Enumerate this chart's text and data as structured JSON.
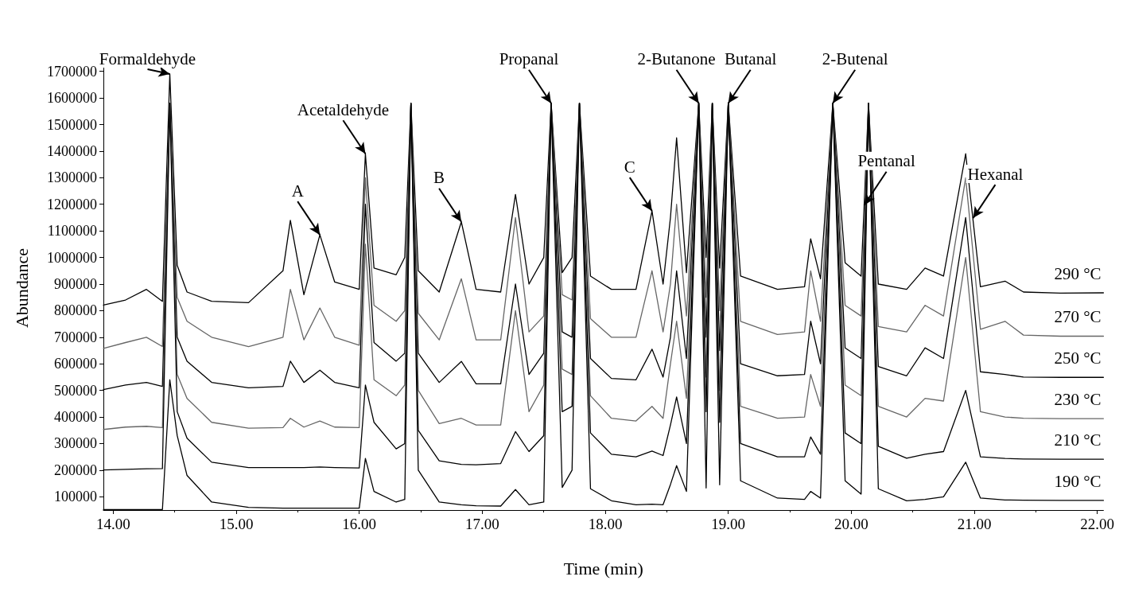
{
  "chart_data": {
    "type": "line",
    "xlabel": "Time (min)",
    "ylabel": "Abundance",
    "xlim": [
      13.92,
      22.05
    ],
    "ylim": [
      50000,
      1720000
    ],
    "xticks": [
      {
        "value": 14,
        "label": "14.00"
      },
      {
        "value": 15,
        "label": "15.00"
      },
      {
        "value": 16,
        "label": "16.00"
      },
      {
        "value": 17,
        "label": "17.00"
      },
      {
        "value": 18,
        "label": "18.00"
      },
      {
        "value": 19,
        "label": "19.00"
      },
      {
        "value": 20,
        "label": "20.00"
      },
      {
        "value": 21,
        "label": "21.00"
      },
      {
        "value": 22,
        "label": "22.00"
      }
    ],
    "yticks": [
      100000,
      200000,
      300000,
      400000,
      500000,
      600000,
      700000,
      800000,
      900000,
      1000000,
      1100000,
      1200000,
      1300000,
      1400000,
      1500000,
      1600000,
      1700000
    ],
    "grid": false,
    "legend": false,
    "marker": "none",
    "line_style": "solid",
    "x": [
      13.92,
      14.1,
      14.27,
      14.4,
      14.46,
      14.52,
      14.6,
      14.8,
      15.1,
      15.38,
      15.44,
      15.55,
      15.68,
      15.8,
      16.0,
      16.05,
      16.12,
      16.3,
      16.37,
      16.42,
      16.48,
      16.65,
      16.83,
      16.95,
      17.15,
      17.27,
      17.38,
      17.5,
      17.56,
      17.65,
      17.73,
      17.79,
      17.88,
      18.05,
      18.25,
      18.38,
      18.47,
      18.53,
      18.58,
      18.66,
      18.76,
      18.82,
      18.87,
      18.93,
      19.0,
      19.1,
      19.4,
      19.62,
      19.67,
      19.75,
      19.85,
      19.95,
      20.08,
      20.14,
      20.22,
      20.45,
      20.6,
      20.75,
      20.93,
      21.05,
      21.25,
      21.4,
      21.7,
      22.05
    ],
    "series": [
      {
        "name": "290 °C",
        "color": "#000000",
        "values": [
          821000,
          840000,
          880000,
          835000,
          1690000,
          970000,
          870000,
          835000,
          830000,
          950000,
          1140000,
          860000,
          1085000,
          908000,
          880000,
          1390000,
          960000,
          935000,
          1000000,
          1580000,
          950000,
          870000,
          1134000,
          880000,
          870000,
          1237000,
          900000,
          1000000,
          1580000,
          943000,
          1000000,
          1580000,
          930000,
          880000,
          880000,
          1175000,
          900000,
          1150000,
          1450000,
          943000,
          1580000,
          1000000,
          1580000,
          960000,
          1580000,
          930000,
          880000,
          890000,
          1070000,
          920000,
          1580000,
          980000,
          930000,
          1580000,
          900000,
          880000,
          960000,
          930000,
          1390000,
          890000,
          911000,
          870000,
          866000,
          867000
        ]
      },
      {
        "name": "270 °C",
        "color": "#666666",
        "values": [
          658000,
          680000,
          700000,
          665000,
          1580000,
          850000,
          760000,
          700000,
          665000,
          700000,
          880000,
          690000,
          810000,
          700000,
          670000,
          1300000,
          820000,
          760000,
          800000,
          1580000,
          790000,
          690000,
          920000,
          690000,
          690000,
          1150000,
          720000,
          780000,
          1580000,
          860000,
          840000,
          1580000,
          770000,
          700000,
          700000,
          950000,
          720000,
          900000,
          1200000,
          780000,
          1580000,
          850000,
          1580000,
          800000,
          1580000,
          760000,
          710000,
          720000,
          950000,
          760000,
          1580000,
          820000,
          780000,
          1580000,
          740000,
          720000,
          820000,
          780000,
          1300000,
          730000,
          760000,
          708000,
          704000,
          704000
        ]
      },
      {
        "name": "250 °C",
        "color": "#000000",
        "values": [
          503000,
          520000,
          530000,
          515000,
          1580000,
          700000,
          610000,
          530000,
          510000,
          515000,
          610000,
          530000,
          576000,
          530000,
          510000,
          1200000,
          680000,
          610000,
          640000,
          1580000,
          640000,
          530000,
          609000,
          525000,
          525000,
          900000,
          560000,
          640000,
          1580000,
          720000,
          700000,
          1580000,
          620000,
          545000,
          540000,
          655000,
          550000,
          700000,
          950000,
          620000,
          1580000,
          700000,
          1580000,
          650000,
          1580000,
          600000,
          555000,
          560000,
          760000,
          600000,
          1580000,
          660000,
          620000,
          1580000,
          590000,
          555000,
          660000,
          620000,
          1150000,
          570000,
          560000,
          550000,
          549000,
          549000
        ]
      },
      {
        "name": "230 °C",
        "color": "#666666",
        "values": [
          353000,
          362000,
          365000,
          360000,
          1580000,
          560000,
          470000,
          380000,
          358000,
          360000,
          395000,
          362000,
          385000,
          362000,
          360000,
          1050000,
          540000,
          480000,
          520000,
          1580000,
          500000,
          375000,
          395000,
          370000,
          370000,
          800000,
          420000,
          520000,
          1580000,
          580000,
          560000,
          1580000,
          480000,
          395000,
          385000,
          440000,
          395000,
          600000,
          760000,
          470000,
          1580000,
          550000,
          1580000,
          500000,
          1580000,
          440000,
          395000,
          400000,
          560000,
          440000,
          1580000,
          520000,
          480000,
          1580000,
          440000,
          400000,
          470000,
          460000,
          1000000,
          420000,
          400000,
          395000,
          394000,
          394000
        ]
      },
      {
        "name": "210 °C",
        "color": "#000000",
        "values": [
          201000,
          203000,
          205000,
          206000,
          1580000,
          420000,
          320000,
          230000,
          210000,
          210000,
          210000,
          210000,
          212000,
          210000,
          208000,
          520000,
          380000,
          280000,
          300000,
          1580000,
          350000,
          235000,
          222000,
          220000,
          225000,
          345000,
          270000,
          330000,
          1580000,
          420000,
          440000,
          1580000,
          340000,
          260000,
          250000,
          272000,
          255000,
          370000,
          475000,
          300000,
          1580000,
          420000,
          1580000,
          380000,
          1580000,
          300000,
          250000,
          250000,
          325000,
          260000,
          1580000,
          340000,
          300000,
          1580000,
          290000,
          245000,
          260000,
          270000,
          500000,
          250000,
          244000,
          242000,
          241000,
          241000
        ]
      },
      {
        "name": "190 °C",
        "color": "#000000",
        "values": [
          52000,
          52000,
          52000,
          52000,
          540000,
          330000,
          180000,
          80000,
          60000,
          57000,
          57000,
          57000,
          57000,
          57000,
          57000,
          244000,
          120000,
          80000,
          90000,
          1580000,
          200000,
          80000,
          70000,
          66000,
          65000,
          127000,
          70000,
          80000,
          1580000,
          135000,
          200000,
          1580000,
          130000,
          85000,
          70000,
          72000,
          70000,
          146000,
          217000,
          120000,
          1580000,
          133000,
          1580000,
          145000,
          1580000,
          160000,
          95000,
          90000,
          120000,
          95000,
          1580000,
          160000,
          110000,
          1580000,
          130000,
          85000,
          90000,
          100000,
          230000,
          95000,
          88000,
          87000,
          86000,
          86000
        ]
      }
    ],
    "annotations": [
      {
        "text": "Formaldehyde",
        "x": 14.46,
        "y": 1690000
      },
      {
        "text": "A",
        "x": 15.68,
        "y": 1085000
      },
      {
        "text": "Acetaldehyde",
        "x": 16.05,
        "y": 1390000
      },
      {
        "text": "B",
        "x": 16.83,
        "y": 1134000
      },
      {
        "text": "Propanal",
        "x": 17.56,
        "y": 1580000
      },
      {
        "text": "C",
        "x": 18.38,
        "y": 1175000
      },
      {
        "text": "2-Butanone",
        "x": 18.76,
        "y": 1580000
      },
      {
        "text": "Butanal",
        "x": 19.0,
        "y": 1580000
      },
      {
        "text": "2-Butenal",
        "x": 19.85,
        "y": 1580000
      },
      {
        "text": "Pentanal",
        "x": 20.105,
        "y": 1197000
      },
      {
        "text": "Hexanal",
        "x": 20.99,
        "y": 1148000
      }
    ]
  }
}
